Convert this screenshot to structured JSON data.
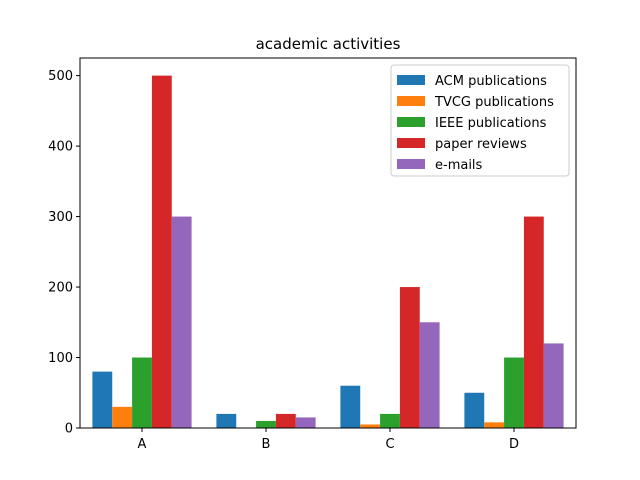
{
  "chart_data": {
    "type": "bar",
    "title": "academic activities",
    "xlabel": "",
    "ylabel": "",
    "categories": [
      "A",
      "B",
      "C",
      "D"
    ],
    "ylim": [
      0,
      525
    ],
    "yticks": [
      0,
      100,
      200,
      300,
      400,
      500
    ],
    "grid": false,
    "legend_position": "top-right",
    "series": [
      {
        "name": "ACM publications",
        "color": "#1f77b4",
        "values": [
          80,
          20,
          60,
          50
        ]
      },
      {
        "name": "TVCG publications",
        "color": "#ff7f0e",
        "values": [
          30,
          0,
          5,
          8
        ]
      },
      {
        "name": "IEEE publications",
        "color": "#2ca02c",
        "values": [
          100,
          10,
          20,
          100
        ]
      },
      {
        "name": "paper reviews",
        "color": "#d62728",
        "values": [
          500,
          20,
          200,
          300
        ]
      },
      {
        "name": "e-mails",
        "color": "#9467bd",
        "values": [
          300,
          15,
          150,
          120
        ]
      }
    ]
  }
}
